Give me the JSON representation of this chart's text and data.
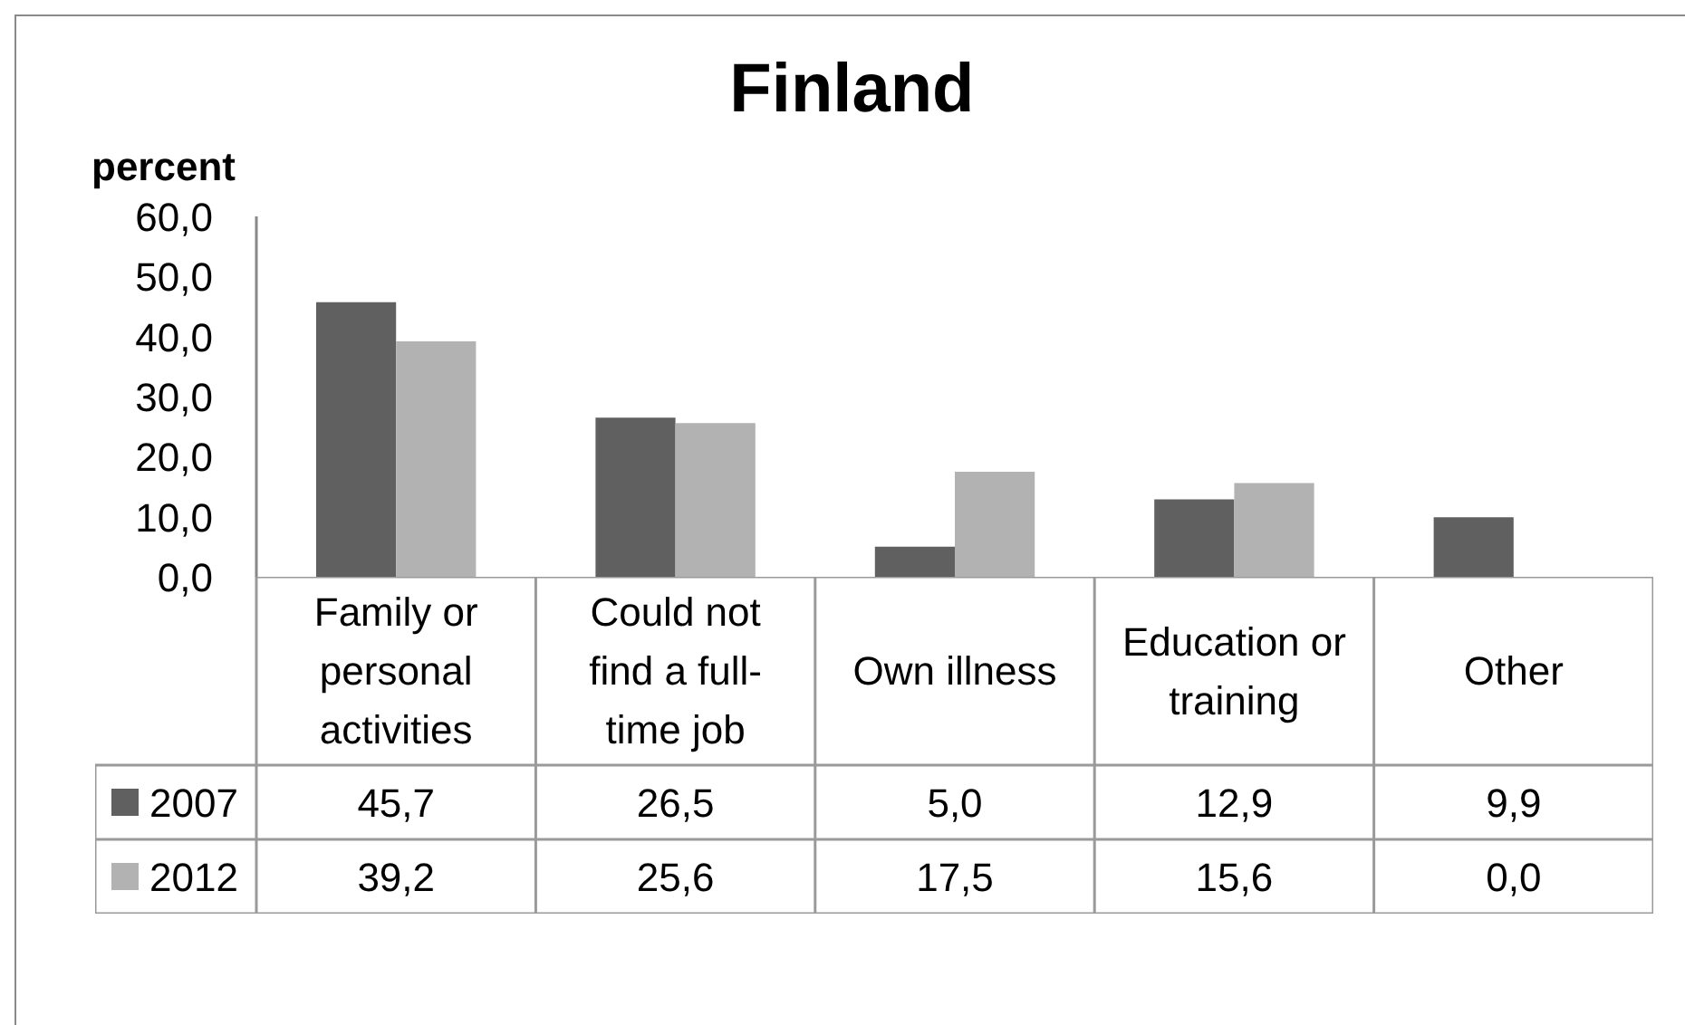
{
  "chart_data": {
    "type": "bar",
    "title": "Finland",
    "ylabel": "percent",
    "categories": [
      "Family or personal activities",
      "Could not find a full-time job",
      "Own illness",
      "Education or training",
      "Other"
    ],
    "series": [
      {
        "name": "2007",
        "color": "#606060",
        "values": [
          45.7,
          26.5,
          5.0,
          12.9,
          9.9
        ],
        "value_labels": [
          "45,7",
          "26,5",
          "5,0",
          "12,9",
          "9,9"
        ]
      },
      {
        "name": "2012",
        "color": "#b2b2b2",
        "values": [
          39.2,
          25.6,
          17.5,
          15.6,
          0.0
        ],
        "value_labels": [
          "39,2",
          "25,6",
          "17,5",
          "15,6",
          "0,0"
        ]
      }
    ],
    "ylim": [
      0,
      60
    ],
    "yticks": [
      {
        "value": 0,
        "label": "0,0"
      },
      {
        "value": 10,
        "label": "10,0"
      },
      {
        "value": 20,
        "label": "20,0"
      },
      {
        "value": 30,
        "label": "30,0"
      },
      {
        "value": 40,
        "label": "40,0"
      },
      {
        "value": 50,
        "label": "50,0"
      },
      {
        "value": 60,
        "label": "60,0"
      }
    ],
    "grid": false,
    "legend": "bottom"
  }
}
